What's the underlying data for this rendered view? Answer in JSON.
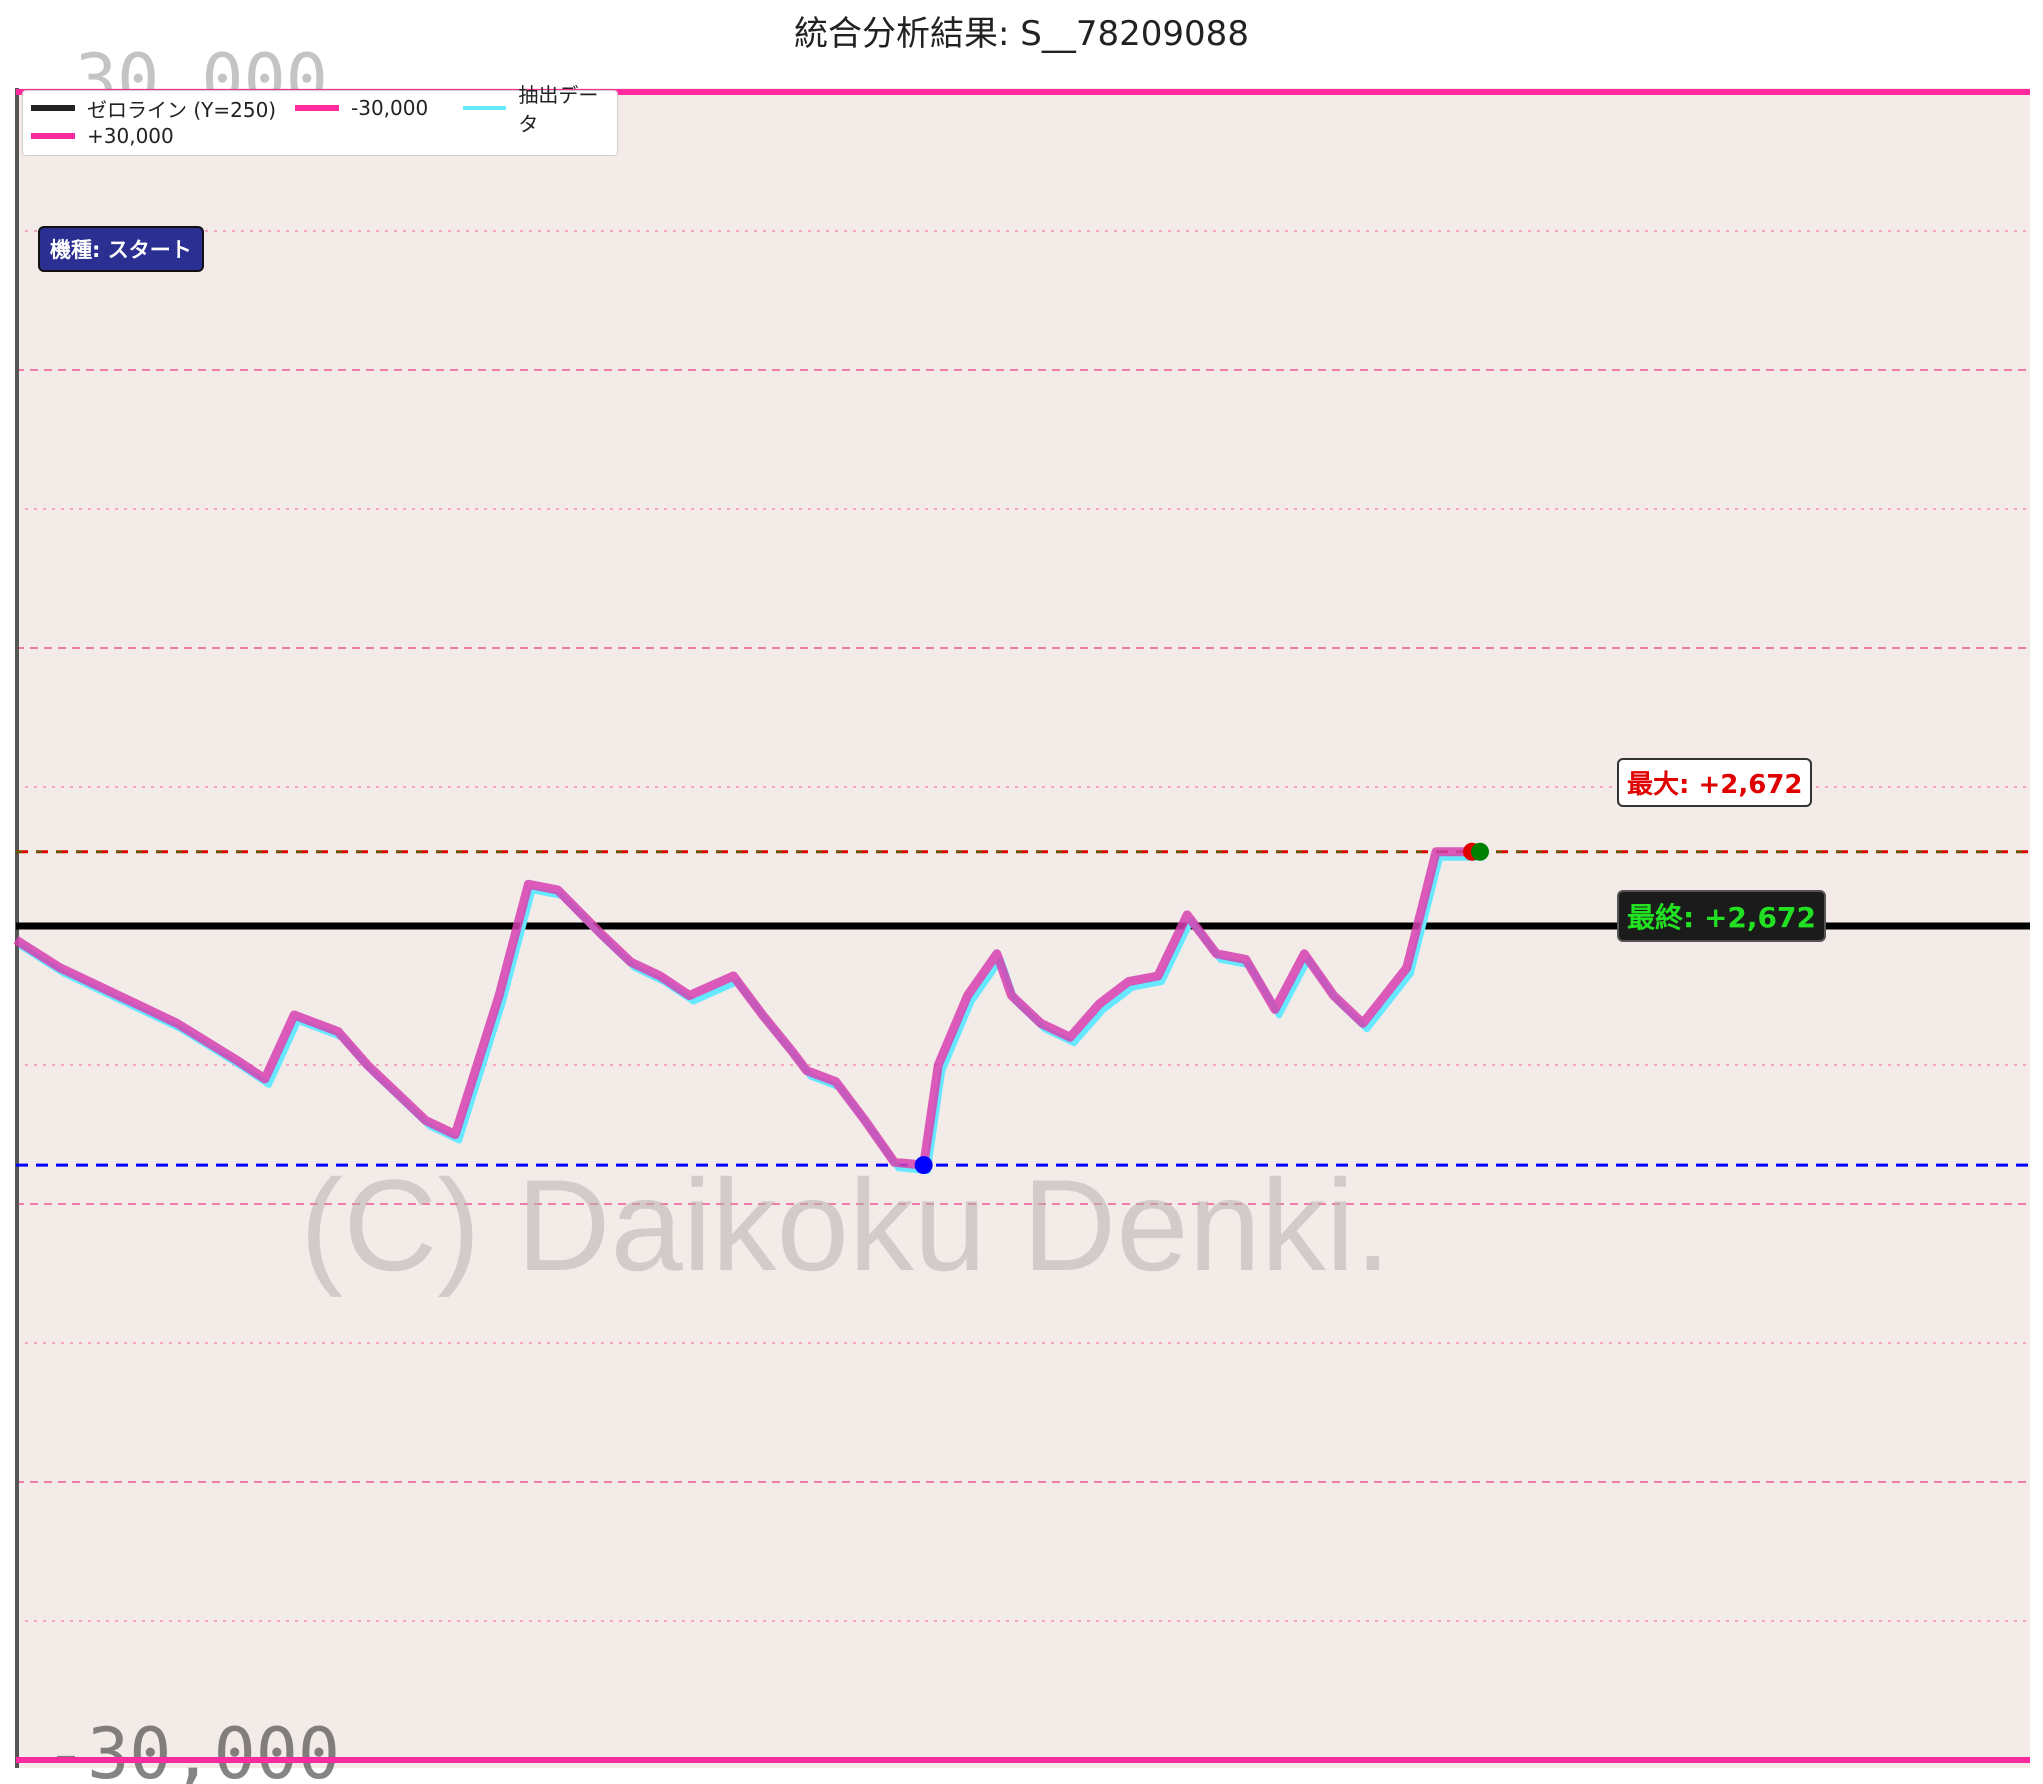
{
  "chart_data": {
    "type": "line",
    "title": "統合分析結果: S__78209088",
    "ylim": [
      -30000,
      30000
    ],
    "grid": true,
    "legend_position": "top-left",
    "watermark": "(C) Daikoku Denki.",
    "axis_tick_labels": [
      "30,000",
      "-30,000"
    ],
    "reference_lines": [
      {
        "name": "ゼロライン (Y=250)",
        "value": 0,
        "color": "#000000"
      },
      {
        "name": "-30,000",
        "value": -30000,
        "color": "#ff2a9d"
      },
      {
        "name": "+30,000",
        "value": 30000,
        "color": "#ff2a9d"
      }
    ],
    "series": [
      {
        "name": "抽出データ",
        "color": "#66e8ff",
        "x": [
          0,
          3,
          7,
          11,
          15,
          17,
          19,
          22,
          24,
          26,
          28,
          30,
          33,
          35,
          37,
          40,
          42,
          44,
          46,
          49,
          51,
          53,
          54,
          56,
          58,
          60,
          62,
          63,
          65,
          67,
          68,
          70,
          72,
          74,
          76,
          78,
          80,
          82,
          84,
          86,
          88,
          90,
          92,
          95,
          97,
          100
        ],
        "values": [
          -500,
          -1500,
          -2500,
          -3500,
          -4800,
          -5500,
          -3200,
          -3800,
          -5000,
          -6000,
          -7000,
          -7500,
          -2500,
          1500,
          1300,
          -300,
          -1300,
          -1800,
          -2500,
          -1800,
          -3200,
          -4500,
          -5200,
          -5600,
          -7000,
          -8500,
          -8600,
          -5000,
          -2500,
          -1000,
          -2500,
          -3500,
          -4000,
          -2800,
          -2000,
          -1800,
          400,
          -1000,
          -1200,
          -3000,
          -1000,
          -2500,
          -3500,
          -1500,
          2672,
          2672
        ]
      }
    ],
    "markers": {
      "max": {
        "label": "最大: +2,672",
        "value": 2672,
        "color": "#ff0000"
      },
      "min": {
        "value": -8600,
        "color": "#0000ff"
      },
      "final": {
        "label": "最終: +2,672",
        "value": 2672,
        "color": "#008000"
      }
    },
    "machine_label": "機種: スタート"
  },
  "colors": {
    "plot_background": "#f3ebe8",
    "grid_dashed": "#f07aa8",
    "grid_dotted": "#f3a6c2",
    "data_stroke": "#d63fb0",
    "zero_line": "#000000",
    "limit_line": "#ff2a9d",
    "max_line": "#e00000",
    "min_line": "#0000ff"
  }
}
